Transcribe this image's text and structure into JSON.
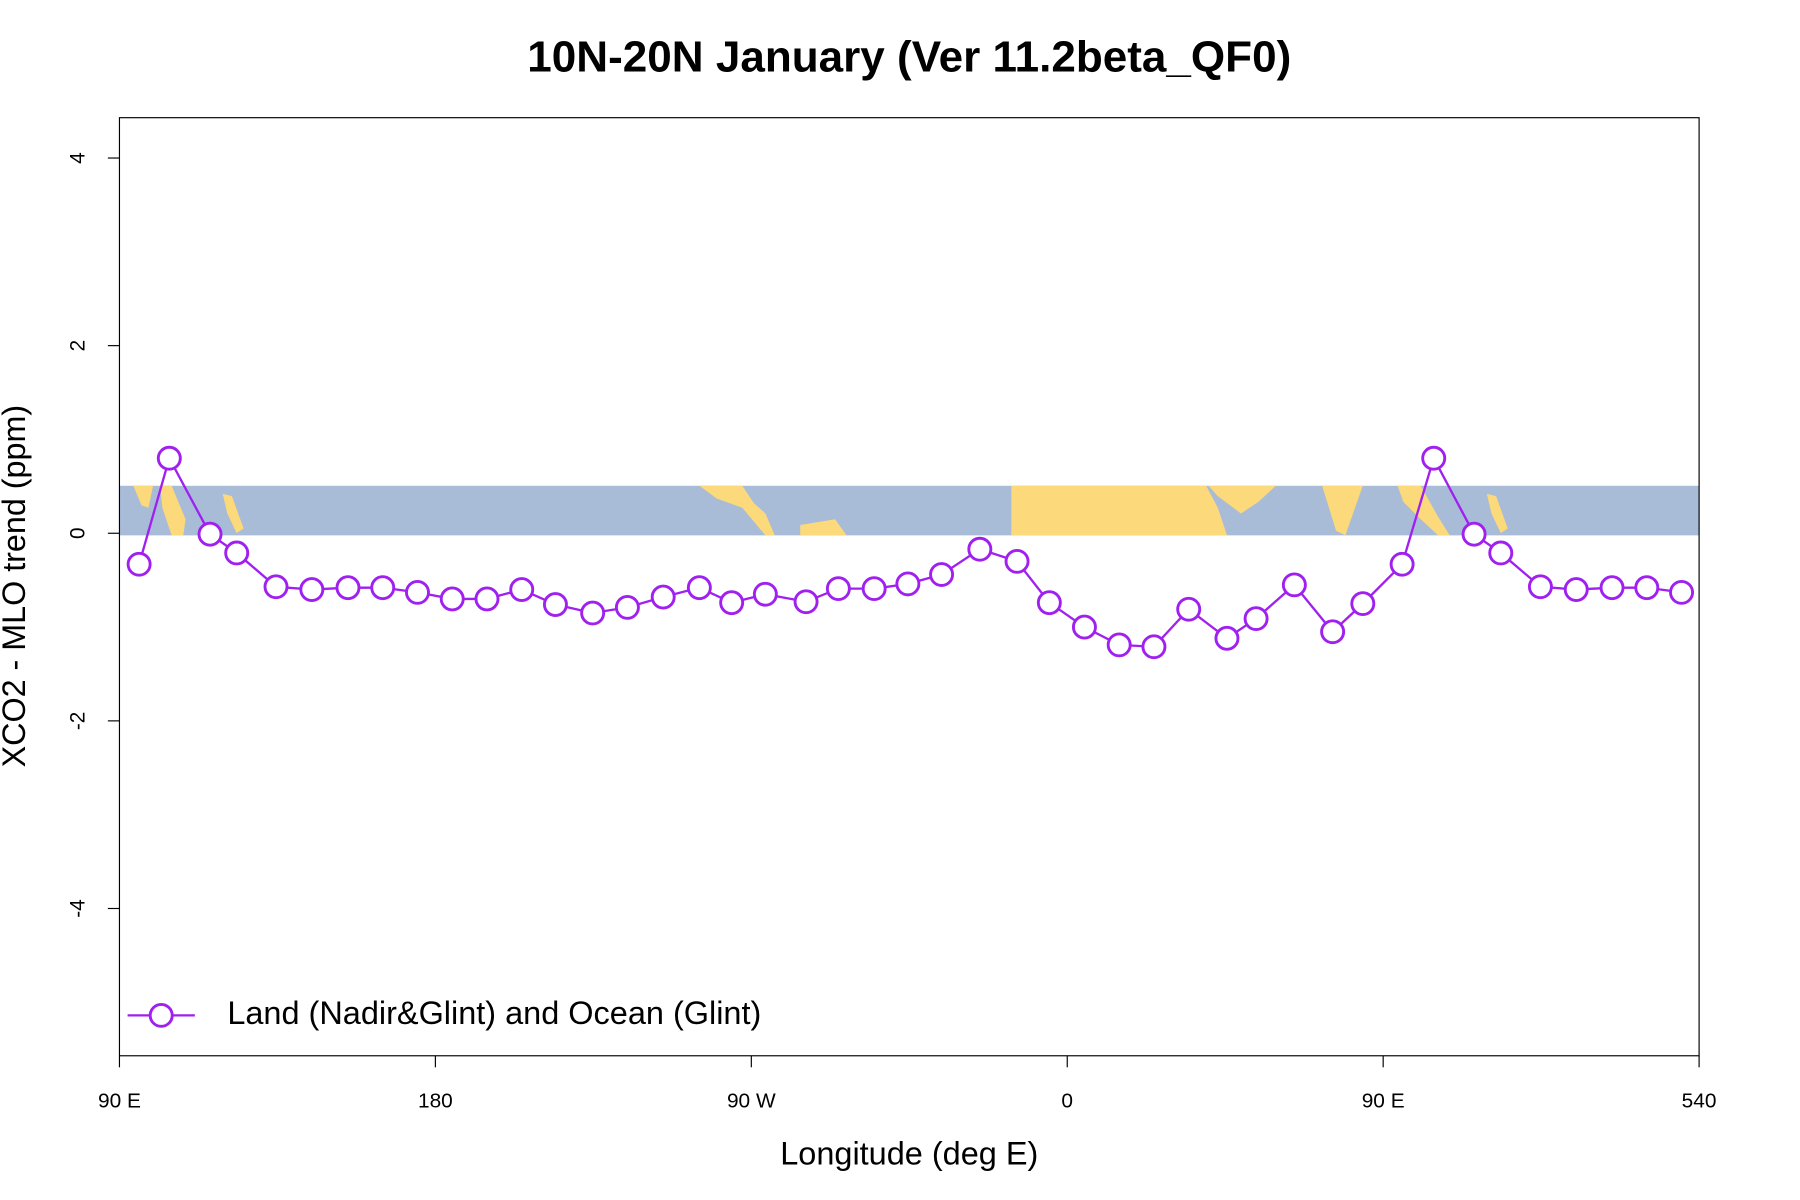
{
  "chart_data": {
    "type": "line",
    "title": "10N-20N January (Ver 11.2beta_QF0)",
    "xlabel": "Longitude (deg E)",
    "ylabel": "XCO2 - MLO trend (ppm)",
    "xlim": [
      90,
      540
    ],
    "xticks": [
      {
        "value": 90,
        "label": "90 E"
      },
      180,
      {
        "value": 270,
        "label": "90 W"
      },
      {
        "value": 360,
        "label": "0"
      },
      {
        "value": 450,
        "label": "90 E"
      },
      540
    ],
    "ylim": [
      -5.57,
      4.43
    ],
    "yticks": [
      -4,
      -2,
      0,
      2,
      4
    ],
    "legend": "bottomleft",
    "series": [
      {
        "name": "Land (Nadir&Glint) and Ocean (Glint)",
        "color": "#a020f0",
        "x": [
          95.6,
          104.2,
          115.8,
          123.4,
          134.6,
          144.8,
          155.1,
          165.0,
          174.9,
          184.8,
          194.7,
          204.6,
          214.2,
          224.8,
          234.7,
          244.9,
          255.2,
          264.4,
          274.0,
          285.6,
          294.8,
          305.0,
          314.6,
          324.2,
          335.1,
          345.7,
          354.9,
          364.9,
          374.8,
          384.7,
          394.6,
          405.5,
          413.8,
          424.7,
          435.6,
          444.2,
          455.4,
          464.4,
          475.9,
          483.5,
          494.8,
          505.0,
          515.2,
          525.1,
          535.0
        ],
        "values": [
          -0.33,
          0.8,
          -0.01,
          -0.21,
          -0.57,
          -0.6,
          -0.58,
          -0.58,
          -0.63,
          -0.7,
          -0.7,
          -0.6,
          -0.76,
          -0.85,
          -0.79,
          -0.68,
          -0.58,
          -0.74,
          -0.65,
          -0.73,
          -0.59,
          -0.59,
          -0.54,
          -0.44,
          -0.17,
          -0.3,
          -0.74,
          -1.0,
          -1.19,
          -1.21,
          -0.81,
          -1.12,
          -0.91,
          -0.55,
          -1.05,
          -0.75,
          -0.33,
          0.8,
          -0.01,
          -0.21,
          -0.57,
          -0.6,
          -0.58,
          -0.58,
          -0.63
        ]
      }
    ]
  }
}
